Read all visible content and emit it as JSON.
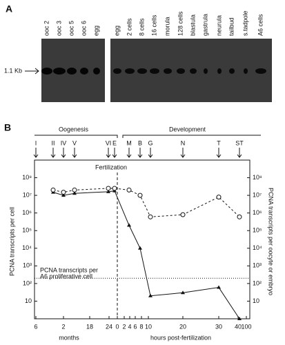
{
  "panel_a": {
    "label": "A",
    "marker": "1.1 Kb",
    "lanes_left": [
      "ooc 2",
      "ooc 3",
      "ooc 5",
      "ooc 6",
      "egg"
    ],
    "lanes_right": [
      "egg",
      "2 cells",
      "8 cells",
      "16 cells",
      "morula",
      "128 cells",
      "blastula",
      "gastrula",
      "neurula",
      "tailbud",
      "s.tadpole",
      "A6 cells"
    ]
  },
  "chart_data": {
    "type": "line",
    "label": "B",
    "groups": [
      "Oogenesis",
      "Development"
    ],
    "categories": [
      "I",
      "II",
      "IV",
      "V",
      "VI",
      "E",
      "M",
      "B",
      "G",
      "N",
      "T",
      "ST"
    ],
    "series": [
      {
        "name": "PCNA transcripts per cell",
        "color": "#111111",
        "marker": "triangle",
        "dash": false,
        "values": [
          null,
          15000000,
          10000000,
          13000000,
          16000000,
          18000000,
          200000,
          10000,
          20,
          30,
          60,
          1
        ]
      },
      {
        "name": "PCNA transcripts per oocyte or embryo",
        "color": "#111111",
        "marker": "circle",
        "dash": true,
        "values": [
          null,
          20000000,
          15000000,
          20000000,
          25000000,
          25000000,
          20000000,
          10000000,
          600000,
          800000,
          8000000,
          600000
        ]
      }
    ],
    "log_y": true,
    "ylim": [
      1,
      1000000000
    ],
    "yticks": [
      10,
      {
        "value": 100,
        "label": "10²"
      },
      {
        "value": 1000,
        "label": "10³"
      },
      {
        "value": 10000,
        "label": "10⁴"
      },
      {
        "value": 100000,
        "label": "10⁵"
      },
      {
        "value": 1000000,
        "label": "10⁶"
      },
      {
        "value": 10000000,
        "label": "10⁷"
      },
      {
        "value": 100000000,
        "label": "10⁸"
      }
    ],
    "annotation": "Fertilization",
    "reference_line": {
      "value": 200,
      "label": [
        "PCNA transcripts per",
        "A6 proliferative cell"
      ]
    },
    "bottom_labels": [
      "6",
      "2",
      "18",
      "24",
      "0",
      "2",
      "4",
      "6",
      "8",
      "10",
      "20",
      "30",
      "40",
      "100"
    ],
    "xlabels": [
      "months",
      "hours post-fertilization"
    ]
  }
}
